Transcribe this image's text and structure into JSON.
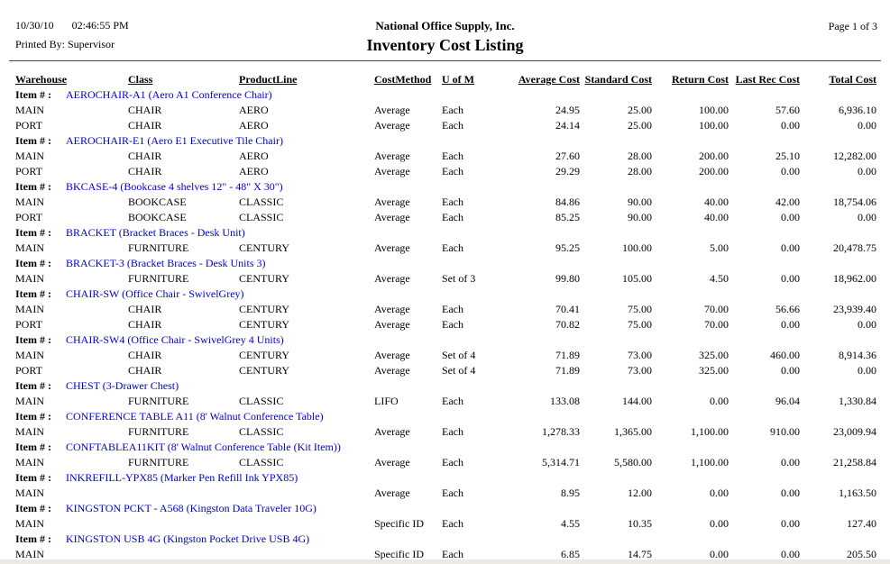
{
  "page": {
    "date": "10/30/10",
    "time": "02:46:55 PM",
    "printed_by": "Printed By: Supervisor",
    "company": "National Office Supply, Inc.",
    "report_title": "Inventory Cost Listing",
    "page_label": "Page 1 of 3"
  },
  "table": {
    "item_row_label": "Item # :",
    "columns": [
      "Warehouse",
      "Class",
      "ProductLine",
      "CostMethod",
      "U of M",
      "Average Cost",
      "Standard Cost",
      "Return Cost",
      "Last Rec Cost",
      "Total Cost"
    ],
    "groups": [
      {
        "item": "AEROCHAIR-A1 (Aero A1 Conference Chair)",
        "rows": [
          [
            "MAIN",
            "CHAIR",
            "AERO",
            "Average",
            "Each",
            "24.95",
            "25.00",
            "100.00",
            "57.60",
            "6,936.10"
          ],
          [
            "PORT",
            "CHAIR",
            "AERO",
            "Average",
            "Each",
            "24.14",
            "25.00",
            "100.00",
            "0.00",
            "0.00"
          ]
        ]
      },
      {
        "item": "AEROCHAIR-E1 (Aero E1 Executive Tile Chair)",
        "rows": [
          [
            "MAIN",
            "CHAIR",
            "AERO",
            "Average",
            "Each",
            "27.60",
            "28.00",
            "200.00",
            "25.10",
            "12,282.00"
          ],
          [
            "PORT",
            "CHAIR",
            "AERO",
            "Average",
            "Each",
            "29.29",
            "28.00",
            "200.00",
            "0.00",
            "0.00"
          ]
        ]
      },
      {
        "item": "BKCASE-4 (Bookcase 4 shelves 12\" - 48\" X 30\")",
        "rows": [
          [
            "MAIN",
            "BOOKCASE",
            "CLASSIC",
            "Average",
            "Each",
            "84.86",
            "90.00",
            "40.00",
            "42.00",
            "18,754.06"
          ],
          [
            "PORT",
            "BOOKCASE",
            "CLASSIC",
            "Average",
            "Each",
            "85.25",
            "90.00",
            "40.00",
            "0.00",
            "0.00"
          ]
        ]
      },
      {
        "item": "BRACKET (Bracket Braces - Desk Unit)",
        "rows": [
          [
            "MAIN",
            "FURNITURE",
            "CENTURY",
            "Average",
            "Each",
            "95.25",
            "100.00",
            "5.00",
            "0.00",
            "20,478.75"
          ]
        ]
      },
      {
        "item": "BRACKET-3 (Bracket Braces - Desk Units 3)",
        "rows": [
          [
            "MAIN",
            "FURNITURE",
            "CENTURY",
            "Average",
            "Set of 3",
            "99.80",
            "105.00",
            "4.50",
            "0.00",
            "18,962.00"
          ]
        ]
      },
      {
        "item": "CHAIR-SW (Office Chair - SwivelGrey)",
        "rows": [
          [
            "MAIN",
            "CHAIR",
            "CENTURY",
            "Average",
            "Each",
            "70.41",
            "75.00",
            "70.00",
            "56.66",
            "23,939.40"
          ],
          [
            "PORT",
            "CHAIR",
            "CENTURY",
            "Average",
            "Each",
            "70.82",
            "75.00",
            "70.00",
            "0.00",
            "0.00"
          ]
        ]
      },
      {
        "item": "CHAIR-SW4 (Office Chair - SwivelGrey 4 Units)",
        "rows": [
          [
            "MAIN",
            "CHAIR",
            "CENTURY",
            "Average",
            "Set of 4",
            "71.89",
            "73.00",
            "325.00",
            "460.00",
            "8,914.36"
          ],
          [
            "PORT",
            "CHAIR",
            "CENTURY",
            "Average",
            "Set of 4",
            "71.89",
            "73.00",
            "325.00",
            "0.00",
            "0.00"
          ]
        ]
      },
      {
        "item": "CHEST (3-Drawer Chest)",
        "rows": [
          [
            "MAIN",
            "FURNITURE",
            "CLASSIC",
            "LIFO",
            "Each",
            "133.08",
            "144.00",
            "0.00",
            "96.04",
            "1,330.84"
          ]
        ]
      },
      {
        "item": "CONFERENCE TABLE A11 (8' Walnut Conference Table)",
        "rows": [
          [
            "MAIN",
            "FURNITURE",
            "CLASSIC",
            "Average",
            "Each",
            "1,278.33",
            "1,365.00",
            "1,100.00",
            "910.00",
            "23,009.94"
          ]
        ]
      },
      {
        "item": "CONFTABLEA11KIT (8' Walnut Conference Table (Kit Item))",
        "rows": [
          [
            "MAIN",
            "FURNITURE",
            "CLASSIC",
            "Average",
            "Each",
            "5,314.71",
            "5,580.00",
            "1,100.00",
            "0.00",
            "21,258.84"
          ]
        ]
      },
      {
        "item": "INKREFILL-YPX85 (Marker Pen Refill Ink YPX85)",
        "rows": [
          [
            "MAIN",
            "",
            "",
            "Average",
            "Each",
            "8.95",
            "12.00",
            "0.00",
            "0.00",
            "1,163.50"
          ]
        ]
      },
      {
        "item": "KINGSTON PCKT - A568 (Kingston Data Traveler 10G)",
        "rows": [
          [
            "MAIN",
            "",
            "",
            "Specific ID",
            "Each",
            "4.55",
            "10.35",
            "0.00",
            "0.00",
            "127.40"
          ]
        ]
      },
      {
        "item": "KINGSTON USB 4G (Kingston Pocket Drive USB 4G)",
        "rows": [
          [
            "MAIN",
            "",
            "",
            "Specific ID",
            "Each",
            "6.85",
            "14.75",
            "0.00",
            "0.00",
            "205.50"
          ]
        ]
      }
    ]
  },
  "colors": {
    "item_link": "#0000CC",
    "rule": "#4a4a4a",
    "bottom_strip": "#ece9e3"
  }
}
